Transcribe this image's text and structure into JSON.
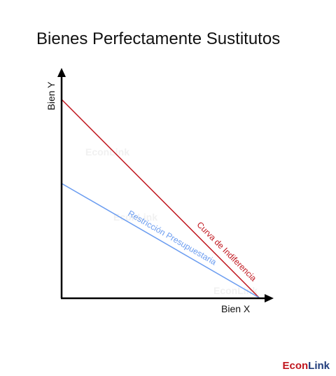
{
  "title": "Bienes Perfectamente Sustitutos",
  "axes": {
    "y_label": "Bien Y",
    "x_label": "Bien X"
  },
  "lines": {
    "indifference": {
      "label": "Curva de Indiferencia",
      "color": "#c0161e"
    },
    "budget": {
      "label": "Restricción Presupuestaria",
      "color": "#6a9cf0"
    }
  },
  "watermark": "EconLink",
  "brand": {
    "part1": "Econ",
    "part2": "Link"
  }
}
